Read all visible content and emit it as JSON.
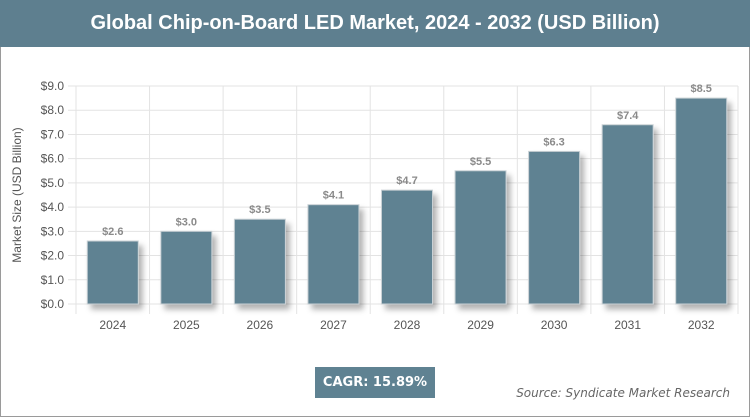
{
  "chart_data": {
    "type": "bar",
    "title": "Global Chip-on-Board LED Market, 2024 - 2032 (USD Billion)",
    "xlabel": "",
    "ylabel": "Market Size (USD Billion)",
    "categories": [
      "2024",
      "2025",
      "2026",
      "2027",
      "2028",
      "2029",
      "2030",
      "2031",
      "2032"
    ],
    "values": [
      2.6,
      3.0,
      3.5,
      4.1,
      4.7,
      5.5,
      6.3,
      7.4,
      8.5
    ],
    "data_labels": [
      "$2.6",
      "$3.0",
      "$3.5",
      "$4.1",
      "$4.7",
      "$5.5",
      "$6.3",
      "$7.4",
      "$8.5"
    ],
    "ylim": [
      0,
      9
    ],
    "yticks": [
      "$0.0",
      "$1.0",
      "$2.0",
      "$3.0",
      "$4.0",
      "$5.0",
      "$6.0",
      "$7.0",
      "$8.0",
      "$9.0"
    ],
    "grid": true,
    "bar_color": "#5f8292"
  },
  "cagr": "CAGR: 15.89%",
  "source": "Source: Syndicate Market Research"
}
